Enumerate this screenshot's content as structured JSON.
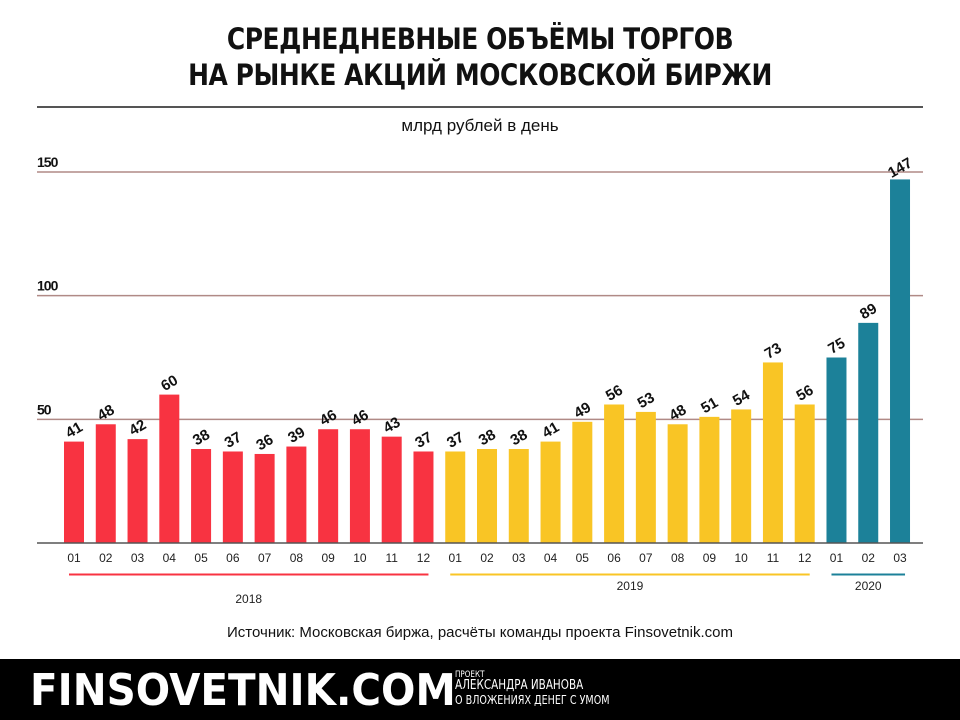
{
  "header": {
    "title_line1": "СРЕДНЕДНЕВНЫЕ ОБЪЁМЫ ТОРГОВ",
    "title_line2": "НА РЫНКЕ АКЦИЙ МОСКОВСКОЙ БИРЖИ",
    "subtitle": "млрд рублей в день"
  },
  "source": "Источник: Московская биржа, расчёты команды проекта Finsovetnik.com",
  "footer": {
    "brand": "FINSOVETNIK.COM",
    "line1": "ПРОЕКТ",
    "line2": "АЛЕКСАНДРА ИВАНОВА",
    "line3": "О ВЛОЖЕНИЯХ ДЕНЕГ С УМОМ"
  },
  "chart_data": {
    "type": "bar",
    "title": "СРЕДНЕДНЕВНЫЕ ОБЪЁМЫ ТОРГОВ НА РЫНКЕ АКЦИЙ МОСКОВСКОЙ БИРЖИ",
    "ylabel": "млрд рублей в день",
    "ylim": [
      0,
      150
    ],
    "yticks": [
      50,
      100,
      150
    ],
    "grid": true,
    "groups": [
      {
        "year": "2018",
        "color": "#f83341",
        "categories": [
          "01",
          "02",
          "03",
          "04",
          "05",
          "06",
          "07",
          "08",
          "09",
          "10",
          "11",
          "12"
        ],
        "values": [
          41,
          48,
          42,
          60,
          38,
          37,
          36,
          39,
          46,
          46,
          43,
          37
        ]
      },
      {
        "year": "2019",
        "color": "#f9c525",
        "categories": [
          "01",
          "02",
          "03",
          "04",
          "05",
          "06",
          "07",
          "08",
          "09",
          "10",
          "11",
          "12"
        ],
        "values": [
          37,
          38,
          38,
          41,
          49,
          56,
          53,
          48,
          51,
          54,
          73,
          56
        ]
      },
      {
        "year": "2020",
        "color": "#1c8199",
        "categories": [
          "01",
          "02",
          "03"
        ],
        "values": [
          75,
          89,
          147
        ]
      }
    ],
    "gridline_color": "#b08a86",
    "axis_color": "#555555"
  }
}
